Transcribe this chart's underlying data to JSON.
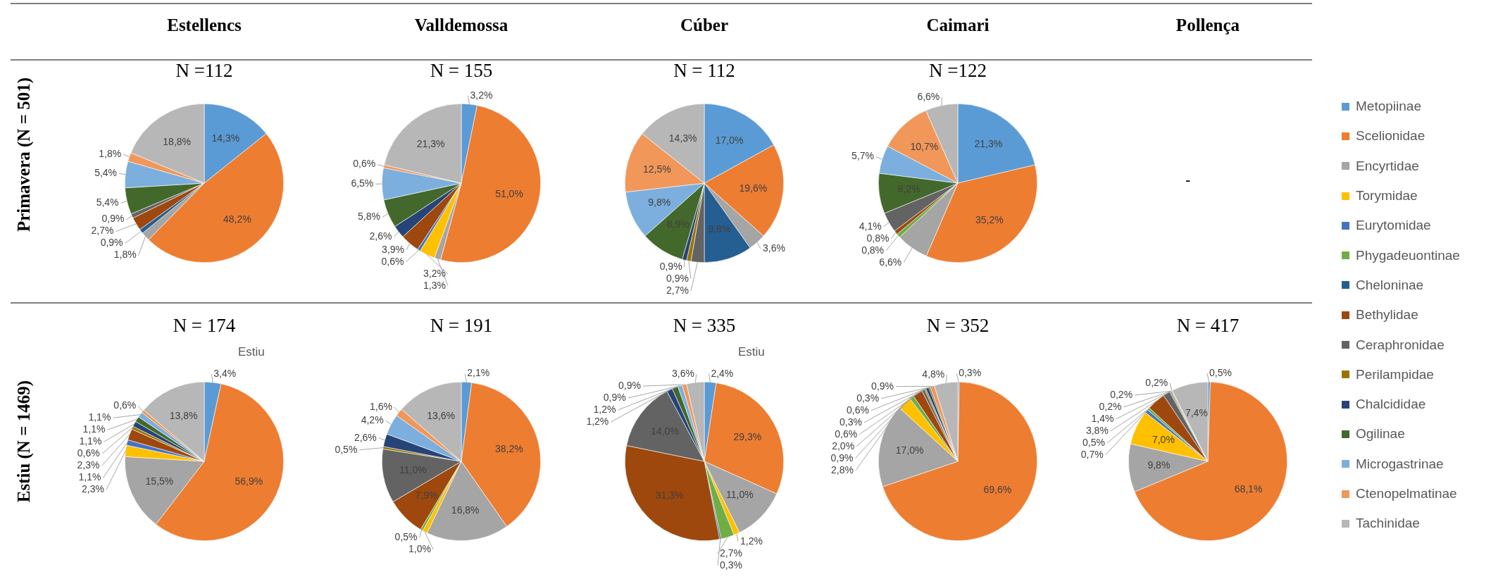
{
  "chart_data": [
    {
      "type": "pie",
      "title": "Estellencs",
      "subtitle": "N =112",
      "ylabel": "Primavera (N = 501)",
      "legend": "right",
      "categories": [
        "Metopiinae",
        "Scelionidae",
        "Encyrtidae",
        "Torymidae",
        "Eurytomidae",
        "Phygadeuontinae",
        "Cheloninae",
        "Bethylidae",
        "Ceraphronidae",
        "Perilampidae",
        "Chalcididae",
        "Ogilinae",
        "Microgastrinae",
        "Ctenopelmatinae",
        "Tachinidae"
      ],
      "colors": [
        "#5b9bd5",
        "#ed7d31",
        "#a5a5a5",
        "#ffc000",
        "#4472c4",
        "#70ad47",
        "#255e91",
        "#9e480e",
        "#636363",
        "#997300",
        "#264478",
        "#43682b",
        "#7cafdd",
        "#f1975a",
        "#b7b7b7"
      ],
      "values": [
        14.3,
        48.2,
        1.8,
        null,
        null,
        null,
        0.9,
        2.7,
        0.9,
        null,
        null,
        5.4,
        5.4,
        1.8,
        18.8
      ],
      "value_labels": [
        "14,3%",
        "48,2%",
        "1,8%",
        null,
        null,
        null,
        "0,9%",
        "2,7%",
        "0,9%",
        null,
        null,
        "5,4%",
        "5,4%",
        "1,8%",
        "18,8%"
      ]
    },
    {
      "type": "pie",
      "title": "Valldemossa",
      "subtitle": "N = 155",
      "categories": [
        null,
        null,
        null,
        null,
        null,
        null,
        null,
        null,
        null,
        null,
        null,
        null,
        null,
        null,
        null
      ],
      "colors": [
        "#5b9bd5",
        "#ed7d31",
        "#a5a5a5",
        "#ffc000",
        "#4472c4",
        "#70ad47",
        "#255e91",
        "#9e480e",
        "#636363",
        "#997300",
        "#264478",
        "#43682b",
        "#7cafdd",
        "#f1975a",
        "#b7b7b7"
      ],
      "values": [
        3.2,
        51.0,
        1.3,
        3.2,
        0.6,
        null,
        null,
        3.9,
        null,
        null,
        2.6,
        5.8,
        6.5,
        0.6,
        21.3
      ],
      "value_labels": [
        "3,2%",
        "51,0%",
        "1,3%",
        "3,2%",
        "0,6%",
        null,
        null,
        "3,9%",
        null,
        null,
        "2,6%",
        "5,8%",
        "6,5%",
        "0,6%",
        "21,3%"
      ]
    },
    {
      "type": "pie",
      "title": "Cúber",
      "subtitle": "N = 112",
      "categories": [
        null,
        null,
        null,
        null,
        null,
        null,
        null,
        null,
        null,
        null,
        null,
        null,
        null,
        null,
        null
      ],
      "colors": [
        "#5b9bd5",
        "#ed7d31",
        "#a5a5a5",
        "#ffc000",
        "#4472c4",
        "#70ad47",
        "#255e91",
        "#9e480e",
        "#636363",
        "#997300",
        "#264478",
        "#43682b",
        "#7cafdd",
        "#f1975a",
        "#b7b7b7"
      ],
      "values": [
        17.0,
        19.6,
        3.6,
        null,
        null,
        null,
        9.8,
        null,
        2.7,
        0.9,
        0.9,
        8.9,
        9.8,
        12.5,
        14.3
      ],
      "value_labels": [
        "17,0%",
        "19,6%",
        "3,6%",
        null,
        null,
        null,
        "9,8%",
        null,
        "2,7%",
        "0,9%",
        "0,9%",
        "8,9%",
        "9,8%",
        "12,5%",
        "14,3%"
      ]
    },
    {
      "type": "pie",
      "title": "Caimari",
      "subtitle": "N =122",
      "categories": [
        null,
        null,
        null,
        null,
        null,
        null,
        null,
        null,
        null,
        null,
        null,
        null,
        null,
        null,
        null
      ],
      "colors": [
        "#5b9bd5",
        "#ed7d31",
        "#a5a5a5",
        "#ffc000",
        "#4472c4",
        "#70ad47",
        "#255e91",
        "#9e480e",
        "#636363",
        "#997300",
        "#264478",
        "#43682b",
        "#7cafdd",
        "#f1975a",
        "#b7b7b7"
      ],
      "values": [
        21.3,
        35.2,
        6.6,
        null,
        null,
        0.8,
        null,
        0.8,
        4.1,
        null,
        null,
        8.2,
        5.7,
        10.7,
        6.6
      ],
      "value_labels": [
        "21,3%",
        "35,2%",
        "6,6%",
        null,
        null,
        "0,8%",
        null,
        "0,8%",
        "4,1%",
        null,
        null,
        "8,2%",
        "5,7%",
        "10,7%",
        "6,6%"
      ]
    },
    {
      "type": "other",
      "title": "Pollença",
      "annotations": [
        "-"
      ]
    },
    {
      "type": "pie",
      "title": "N = 174",
      "ylabel": "Estiu (N = 1469)",
      "annotations": [
        "Estiu"
      ],
      "categories": [
        null,
        null,
        null,
        null,
        null,
        null,
        null,
        null,
        null,
        null,
        null,
        null,
        null,
        null,
        null
      ],
      "colors": [
        "#5b9bd5",
        "#ed7d31",
        "#a5a5a5",
        "#ffc000",
        "#4472c4",
        "#70ad47",
        "#255e91",
        "#9e480e",
        "#636363",
        "#997300",
        "#264478",
        "#43682b",
        "#7cafdd",
        "#f1975a",
        "#b7b7b7"
      ],
      "values": [
        3.4,
        56.9,
        15.5,
        2.3,
        1.1,
        null,
        null,
        2.3,
        null,
        0.6,
        1.1,
        1.1,
        1.1,
        0.6,
        13.8
      ],
      "value_labels": [
        "3,4%",
        "56,9%",
        "15,5%",
        "2,3%",
        "1,1%",
        null,
        null,
        "2,3%",
        null,
        "0,6%",
        "1,1%",
        "1,1%",
        "1,1%",
        "0,6%",
        "13,8%"
      ]
    },
    {
      "type": "pie",
      "title": "N = 191",
      "categories": [
        null,
        null,
        null,
        null,
        null,
        null,
        null,
        null,
        null,
        null,
        null,
        null,
        null,
        null,
        null
      ],
      "colors": [
        "#5b9bd5",
        "#ed7d31",
        "#a5a5a5",
        "#ffc000",
        "#4472c4",
        "#70ad47",
        "#255e91",
        "#9e480e",
        "#636363",
        "#997300",
        "#264478",
        "#43682b",
        "#7cafdd",
        "#f1975a",
        "#b7b7b7"
      ],
      "values": [
        2.1,
        38.2,
        16.8,
        1.0,
        null,
        0.5,
        null,
        7.9,
        11.0,
        0.5,
        2.6,
        null,
        4.2,
        1.6,
        13.6
      ],
      "value_labels": [
        "2,1%",
        "38,2%",
        "16,8%",
        "1,0%",
        null,
        "0,5%",
        null,
        "7,9%",
        "11,0%",
        "0,5%",
        "2,6%",
        null,
        "4,2%",
        "1,6%",
        "13,6%"
      ]
    },
    {
      "type": "pie",
      "title": "N = 335",
      "annotations": [
        "Estiu"
      ],
      "categories": [
        null,
        null,
        null,
        null,
        null,
        null,
        null,
        null,
        null,
        null,
        null,
        null,
        null,
        null,
        null
      ],
      "colors": [
        "#5b9bd5",
        "#ed7d31",
        "#a5a5a5",
        "#ffc000",
        "#4472c4",
        "#70ad47",
        "#255e91",
        "#9e480e",
        "#636363",
        "#997300",
        "#264478",
        "#43682b",
        "#7cafdd",
        "#f1975a",
        "#b7b7b7"
      ],
      "values": [
        2.4,
        29.3,
        11.0,
        1.2,
        null,
        2.7,
        0.3,
        31.3,
        14.0,
        null,
        1.2,
        1.2,
        0.9,
        0.9,
        3.6
      ],
      "value_labels": [
        "2,4%",
        "29,3%",
        "11,0%",
        "1,2%",
        null,
        "2,7%",
        "0,3%",
        "31,3%",
        "14,0%",
        null,
        "1,2%",
        "1,2%",
        "0,9%",
        "0,9%",
        "3,6%"
      ]
    },
    {
      "type": "pie",
      "title": "N = 352",
      "categories": [
        null,
        null,
        null,
        null,
        null,
        null,
        null,
        null,
        null,
        null,
        null,
        null,
        null,
        null,
        null
      ],
      "colors": [
        "#5b9bd5",
        "#ed7d31",
        "#a5a5a5",
        "#ffc000",
        "#4472c4",
        "#70ad47",
        "#255e91",
        "#9e480e",
        "#636363",
        "#997300",
        "#264478",
        "#43682b",
        "#7cafdd",
        "#f1975a",
        "#b7b7b7"
      ],
      "values": [
        0.3,
        69.6,
        17.0,
        2.8,
        null,
        0.9,
        null,
        2.0,
        0.6,
        0.3,
        0.6,
        0.3,
        null,
        0.9,
        4.8
      ],
      "value_labels": [
        "0,3%",
        "69,6%",
        "17,0%",
        "2,8%",
        null,
        "0,9%",
        null,
        "2,0%",
        "0,6%",
        "0,3%",
        "0,6%",
        "0,3%",
        null,
        "0,9%",
        "4,8%"
      ]
    },
    {
      "type": "pie",
      "title": "N = 417",
      "categories": [
        null,
        null,
        null,
        null,
        null,
        null,
        null,
        null,
        null,
        null,
        null,
        null,
        null,
        null,
        null
      ],
      "colors": [
        "#5b9bd5",
        "#ed7d31",
        "#a5a5a5",
        "#ffc000",
        "#4472c4",
        "#70ad47",
        "#255e91",
        "#9e480e",
        "#636363",
        "#997300",
        "#264478",
        "#43682b",
        "#7cafdd",
        "#f1975a",
        "#b7b7b7"
      ],
      "values": [
        0.5,
        68.1,
        9.8,
        7.0,
        0.7,
        0.5,
        null,
        3.8,
        1.4,
        null,
        0.2,
        0.2,
        null,
        0.2,
        7.4
      ],
      "value_labels": [
        "0,5%",
        "68,1%",
        "9,8%",
        "7,0%",
        "0,7%",
        "0,5%",
        null,
        "3,8%",
        "1,4%",
        null,
        "0,2%",
        "0,2%",
        null,
        "0,2%",
        "7,4%"
      ]
    }
  ]
}
